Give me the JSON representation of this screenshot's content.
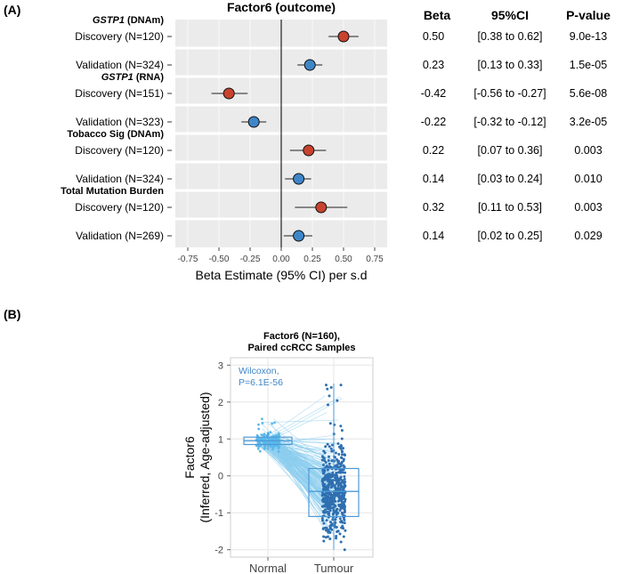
{
  "panel_a": {
    "label": "(A)",
    "columns": {
      "beta": "Beta",
      "ci": "95%CI",
      "p": "P-value"
    }
  },
  "panel_b": {
    "label": "(B)"
  },
  "colors": {
    "discovery": "#c8432f",
    "validation": "#3f86c8",
    "panel_bg": "#ebebeb",
    "line_light": "#8ccdee",
    "box": "#4d9ad6",
    "tumour_points": "#2f6fb0",
    "normal_points": "#5ab8ea"
  },
  "chart_data": [
    {
      "type": "forest",
      "title": "Factor6 (outcome)",
      "xlabel": "Beta Estimate (95% CI) per s.d",
      "xlim": [
        -0.85,
        0.85
      ],
      "xticks": [
        "-0.75",
        "-0.50",
        "-0.25",
        "0.00",
        "0.25",
        "0.50",
        "0.75"
      ],
      "tick_values": [
        -0.75,
        -0.5,
        -0.25,
        0,
        0.25,
        0.5,
        0.75
      ],
      "groups": [
        {
          "bold_italic": "GSTP1",
          "bold": " (DNAm)"
        },
        {
          "bold_italic": "GSTP1",
          "bold": " (RNA)"
        },
        {
          "bold_italic": "",
          "bold": "Tobacco Sig (DNAm)"
        },
        {
          "bold_italic": "",
          "bold": "Total Mutation Burden"
        }
      ],
      "rows": [
        {
          "group": 0,
          "label": "Discovery (N=120)",
          "cohort": "discovery",
          "beta": 0.5,
          "lo": 0.38,
          "hi": 0.62,
          "beta_text": "0.50",
          "ci_text": "[0.38 to 0.62]",
          "p_text": "9.0e-13"
        },
        {
          "group": 0,
          "label": "Validation (N=324)",
          "cohort": "validation",
          "beta": 0.23,
          "lo": 0.13,
          "hi": 0.33,
          "beta_text": "0.23",
          "ci_text": "[0.13 to 0.33]",
          "p_text": "1.5e-05"
        },
        {
          "group": 1,
          "label": "Discovery (N=151)",
          "cohort": "discovery",
          "beta": -0.42,
          "lo": -0.56,
          "hi": -0.27,
          "beta_text": "-0.42",
          "ci_text": "[-0.56 to -0.27]",
          "p_text": "5.6e-08"
        },
        {
          "group": 1,
          "label": "Validation (N=323)",
          "cohort": "validation",
          "beta": -0.22,
          "lo": -0.32,
          "hi": -0.12,
          "beta_text": "-0.22",
          "ci_text": "[-0.32 to -0.12]",
          "p_text": "3.2e-05"
        },
        {
          "group": 2,
          "label": "Discovery (N=120)",
          "cohort": "discovery",
          "beta": 0.22,
          "lo": 0.07,
          "hi": 0.36,
          "beta_text": "0.22",
          "ci_text": "[0.07 to 0.36]",
          "p_text": "0.003"
        },
        {
          "group": 2,
          "label": "Validation (N=324)",
          "cohort": "validation",
          "beta": 0.14,
          "lo": 0.03,
          "hi": 0.24,
          "beta_text": "0.14",
          "ci_text": "[0.03 to 0.24]",
          "p_text": "0.010"
        },
        {
          "group": 3,
          "label": "Discovery (N=120)",
          "cohort": "discovery",
          "beta": 0.32,
          "lo": 0.11,
          "hi": 0.53,
          "beta_text": "0.32",
          "ci_text": "[0.11 to 0.53]",
          "p_text": "0.003"
        },
        {
          "group": 3,
          "label": "Validation (N=269)",
          "cohort": "validation",
          "beta": 0.14,
          "lo": 0.02,
          "hi": 0.25,
          "beta_text": "0.14",
          "ci_text": "[0.02 to 0.25]",
          "p_text": "0.029"
        }
      ]
    },
    {
      "type": "paired_boxplot",
      "title_line1": "Factor6 (N=160),",
      "title_line2": "Paired ccRCC Samples",
      "ylabel_line1": "Factor6",
      "ylabel_line2": "(Inferred, Age-adjusted)",
      "ylim": [
        -2.2,
        3.2
      ],
      "yticks": [
        "3",
        "2",
        "1",
        "0",
        "-1",
        "-2"
      ],
      "ytick_values": [
        3,
        2,
        1,
        0,
        -1,
        -2
      ],
      "categories": [
        "Normal",
        "Tumour"
      ],
      "annotation_line1": "Wilcoxon,",
      "annotation_line2": "P=6.1E-56",
      "n_pairs": 160,
      "boxes": [
        {
          "name": "Normal",
          "q1": 0.85,
          "median": 0.95,
          "q3": 1.05,
          "whisker_low": 0.7,
          "whisker_high": 1.2
        },
        {
          "name": "Tumour",
          "q1": -1.1,
          "median": -0.42,
          "q3": 0.2,
          "whisker_low": -2.0,
          "whisker_high": 2.5
        }
      ]
    }
  ]
}
